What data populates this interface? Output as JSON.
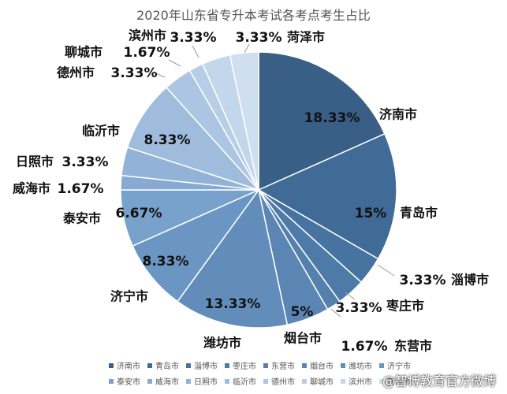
{
  "chart_data": {
    "type": "pie",
    "title": "2020年山东省专升本考试各考点考生占比",
    "start_angle_deg": 0,
    "direction": "clockwise",
    "slices": [
      {
        "label": "济南市",
        "value": 18.33,
        "value_label": "18.33%",
        "color": "#3a5f86"
      },
      {
        "label": "青岛市",
        "value": 15,
        "value_label": "15%",
        "color": "#406b96"
      },
      {
        "label": "淄博市",
        "value": 3.33,
        "value_label": "3.33%",
        "color": "#4773a0"
      },
      {
        "label": "枣庄市",
        "value": 3.33,
        "value_label": "3.33%",
        "color": "#4e7aa8"
      },
      {
        "label": "东营市",
        "value": 1.67,
        "value_label": "1.67%",
        "color": "#5580ad"
      },
      {
        "label": "烟台市",
        "value": 5,
        "value_label": "5%",
        "color": "#5b86b3"
      },
      {
        "label": "潍坊市",
        "value": 13.33,
        "value_label": "13.33%",
        "color": "#628dbb"
      },
      {
        "label": "济宁市",
        "value": 8.33,
        "value_label": "8.33%",
        "color": "#6b96c3"
      },
      {
        "label": "泰安市",
        "value": 6.67,
        "value_label": "6.67%",
        "color": "#78a1cb"
      },
      {
        "label": "威海市",
        "value": 1.67,
        "value_label": "1.67%",
        "color": "#86aad2"
      },
      {
        "label": "日照市",
        "value": 3.33,
        "value_label": "3.33%",
        "color": "#92b3d7"
      },
      {
        "label": "临沂市",
        "value": 8.33,
        "value_label": "8.33%",
        "color": "#9fbcdd"
      },
      {
        "label": "德州市",
        "value": 3.33,
        "value_label": "3.33%",
        "color": "#abc5e2"
      },
      {
        "label": "聊城市",
        "value": 1.67,
        "value_label": "1.67%",
        "color": "#b7cee7"
      },
      {
        "label": "滨州市",
        "value": 3.33,
        "value_label": "3.33%",
        "color": "#c3d7ec"
      },
      {
        "label": "菏泽市",
        "value": 3.33,
        "value_label": "3.33%",
        "color": "#cfdff0"
      }
    ],
    "legend": {
      "position": "bottom"
    }
  },
  "watermark": "@智博教育官方微博"
}
